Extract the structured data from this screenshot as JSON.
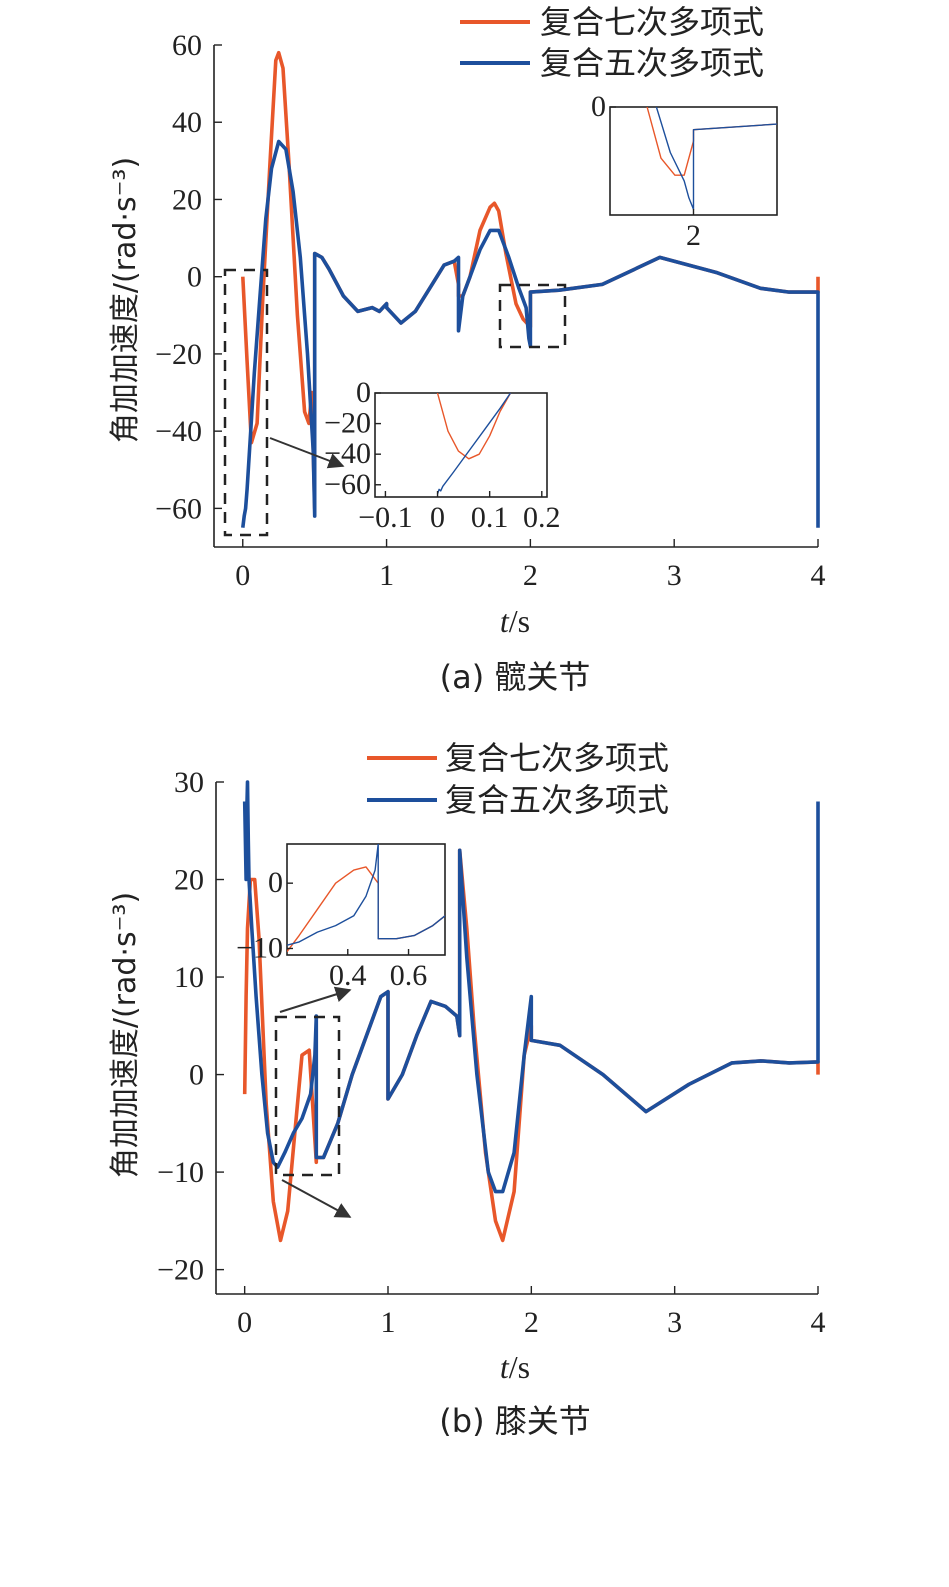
{
  "colors": {
    "seventh": "#e8572a",
    "fifth": "#1d4f9c",
    "axis": "#222222"
  },
  "legend": {
    "seventh": "复合七次多项式",
    "fifth": "复合五次多项式"
  },
  "chart_data": [
    {
      "id": "hip",
      "type": "line",
      "caption": "(a) 髋关节",
      "xlabel_italic": "t",
      "xlabel_unit": "/s",
      "ylabel": "角加加速度/(rad·s⁻³)",
      "xlim": [
        -0.2,
        4
      ],
      "ylim": [
        -70,
        60
      ],
      "xticks": [
        0,
        1,
        2,
        3,
        4
      ],
      "yticks": [
        60,
        40,
        20,
        0,
        -20,
        -40,
        -60
      ],
      "xtick_labels": [
        "0",
        "1",
        "2",
        "3",
        "4"
      ],
      "ytick_labels": [
        "60",
        "40",
        "20",
        "0",
        "−20",
        "−40",
        "−60"
      ],
      "series": [
        {
          "key": "seventh",
          "x": [
            0,
            0.03,
            0.06,
            0.1,
            0.14,
            0.19,
            0.23,
            0.25,
            0.28,
            0.32,
            0.38,
            0.43,
            0.46,
            0.48,
            0.5,
            0.5,
            0.55,
            0.6,
            0.7,
            0.8,
            0.9,
            0.95,
            1.0,
            1.0,
            1.05,
            1.1,
            1.2,
            1.3,
            1.4,
            1.47,
            1.5,
            1.5,
            1.53,
            1.58,
            1.65,
            1.72,
            1.75,
            1.78,
            1.83,
            1.9,
            1.95,
            2.0,
            2.0,
            2.2,
            2.5,
            2.9,
            3.3,
            3.6,
            3.8,
            4.0,
            4.0
          ],
          "y": [
            0,
            -22,
            -43,
            -38,
            -5,
            30,
            56,
            58,
            54,
            30,
            -10,
            -35,
            -38,
            -30,
            -60,
            6,
            5,
            2,
            -5,
            -9,
            -8,
            -9,
            -7,
            -8,
            -10,
            -12,
            -9,
            -3,
            3,
            4,
            -2,
            -5,
            -5,
            0,
            12,
            18,
            19,
            17,
            6,
            -7,
            -11,
            -13,
            -4,
            -3.5,
            -2,
            5,
            1,
            -3,
            -4,
            -4,
            0
          ],
          "name": "复合七次多项式"
        },
        {
          "key": "fifth",
          "x": [
            0,
            0.01,
            0.02,
            0.03,
            0.05,
            0.08,
            0.12,
            0.16,
            0.2,
            0.25,
            0.3,
            0.35,
            0.4,
            0.45,
            0.49,
            0.5,
            0.5,
            0.55,
            0.6,
            0.7,
            0.8,
            0.9,
            0.95,
            1.0,
            1.0,
            1.05,
            1.1,
            1.2,
            1.3,
            1.4,
            1.47,
            1.5,
            1.5,
            1.53,
            1.58,
            1.65,
            1.72,
            1.78,
            1.85,
            1.92,
            1.97,
            1.99,
            2.0,
            2.0,
            2.2,
            2.5,
            2.9,
            3.3,
            3.6,
            3.8,
            4.0,
            4.0
          ],
          "y": [
            -65,
            -62,
            -60,
            -55,
            -43,
            -25,
            -5,
            15,
            28,
            35,
            33,
            22,
            5,
            -20,
            -45,
            -62,
            6,
            5,
            2,
            -5,
            -9,
            -8,
            -9,
            -7,
            -8,
            -10,
            -12,
            -9,
            -3,
            3,
            4,
            5,
            -14,
            -5,
            0,
            7,
            12,
            12,
            5,
            -3,
            -8,
            -16,
            -18,
            -4,
            -3.5,
            -2,
            5,
            1,
            -3,
            -4,
            -4,
            -65
          ],
          "name": "复合五次多项式"
        }
      ],
      "insets": [
        {
          "id": "hip-inset-right",
          "xlim": [
            1.82,
            2.18
          ],
          "ylim": [
            -19,
            0
          ],
          "xticks": [
            2
          ],
          "yticks": [
            0
          ],
          "xtick_labels": [
            "2"
          ],
          "ytick_labels": [
            "0"
          ],
          "series": [
            {
              "key": "seventh",
              "x": [
                1.9,
                1.93,
                1.96,
                1.98,
                2.0,
                2.0,
                2.18
              ],
              "y": [
                0,
                -9,
                -12,
                -12,
                -6,
                -4,
                -3
              ]
            },
            {
              "key": "fifth",
              "x": [
                1.92,
                1.95,
                1.98,
                1.99,
                2.0,
                2.0,
                2.18
              ],
              "y": [
                0,
                -8,
                -13,
                -16,
                -18,
                -4,
                -3
              ]
            }
          ]
        },
        {
          "id": "hip-inset-left",
          "xlim": [
            -0.12,
            0.21
          ],
          "ylim": [
            -68,
            0
          ],
          "xticks": [
            -0.1,
            0,
            0.1,
            0.2
          ],
          "yticks": [
            0,
            -20,
            -40,
            -60
          ],
          "xtick_labels": [
            "−0.1",
            "0",
            "0.1",
            "0.2"
          ],
          "ytick_labels": [
            "0",
            "−20",
            "−40",
            "−60"
          ],
          "series": [
            {
              "key": "seventh",
              "x": [
                0,
                0.02,
                0.04,
                0.06,
                0.08,
                0.1,
                0.12,
                0.14
              ],
              "y": [
                0,
                -25,
                -38,
                -43,
                -40,
                -28,
                -12,
                0
              ]
            },
            {
              "key": "fifth",
              "x": [
                0,
                0.003,
                0.006,
                0.01,
                0.03,
                0.06,
                0.09,
                0.12,
                0.14
              ],
              "y": [
                -66,
                -63,
                -64,
                -61,
                -52,
                -38,
                -24,
                -10,
                0
              ]
            }
          ]
        }
      ]
    },
    {
      "id": "knee",
      "type": "line",
      "caption": "(b) 膝关节",
      "xlabel_italic": "t",
      "xlabel_unit": "/s",
      "ylabel": "角加加速度/(rad·s⁻³)",
      "xlim": [
        -0.2,
        4
      ],
      "ylim": [
        -22.5,
        30
      ],
      "xticks": [
        0,
        1,
        2,
        3,
        4
      ],
      "yticks": [
        30,
        20,
        10,
        0,
        -10,
        -20
      ],
      "xtick_labels": [
        "0",
        "1",
        "2",
        "3",
        "4"
      ],
      "ytick_labels": [
        "30",
        "20",
        "10",
        "0",
        "−10",
        "−20"
      ],
      "series": [
        {
          "key": "seventh",
          "x": [
            0,
            0.01,
            0.02,
            0.04,
            0.07,
            0.1,
            0.15,
            0.2,
            0.25,
            0.3,
            0.35,
            0.4,
            0.45,
            0.5,
            0.5,
            0.55,
            0.65,
            0.75,
            0.85,
            0.95,
            1.0,
            1.0,
            1.1,
            1.2,
            1.3,
            1.4,
            1.48,
            1.5,
            1.5,
            1.55,
            1.6,
            1.68,
            1.75,
            1.8,
            1.88,
            1.95,
            2.0,
            2.0,
            2.2,
            2.5,
            2.8,
            3.1,
            3.4,
            3.6,
            3.8,
            4.0,
            4.0
          ],
          "y": [
            -2,
            8,
            15,
            20,
            20,
            14,
            -3,
            -13,
            -17,
            -14,
            -6,
            2,
            2.5,
            -9,
            -8.5,
            -8.5,
            -5,
            0,
            4,
            8,
            8.5,
            -2.5,
            0,
            4,
            7.5,
            7,
            6,
            4,
            23,
            15,
            5,
            -8,
            -15,
            -17,
            -12,
            2,
            5,
            3.5,
            3,
            0,
            -3.8,
            -1,
            1.2,
            1.4,
            1.2,
            1.3,
            0
          ],
          "name": "复合七次多项式"
        },
        {
          "key": "fifth",
          "x": [
            0,
            0.01,
            0.015,
            0.02,
            0.025,
            0.03,
            0.05,
            0.08,
            0.12,
            0.16,
            0.2,
            0.23,
            0.28,
            0.34,
            0.4,
            0.46,
            0.49,
            0.5,
            0.5,
            0.55,
            0.65,
            0.75,
            0.85,
            0.95,
            1.0,
            1.0,
            1.1,
            1.2,
            1.3,
            1.4,
            1.48,
            1.5,
            1.5,
            1.55,
            1.62,
            1.7,
            1.75,
            1.8,
            1.88,
            1.95,
            2.0,
            2.0,
            2.2,
            2.5,
            2.8,
            3.1,
            3.4,
            3.6,
            3.8,
            4.0,
            4.0
          ],
          "y": [
            28,
            20,
            27,
            30,
            24,
            20,
            15,
            8,
            0,
            -6,
            -9,
            -9.5,
            -8,
            -6,
            -4.5,
            -2,
            2,
            6,
            -8.5,
            -8.5,
            -5,
            0,
            4,
            8,
            8.5,
            -2.5,
            0,
            4,
            7.5,
            7,
            6,
            4,
            23,
            12,
            0,
            -10,
            -12,
            -12,
            -8,
            2,
            8,
            3.5,
            3,
            0,
            -3.8,
            -1,
            1.2,
            1.4,
            1.2,
            1.3,
            28
          ],
          "name": "复合五次多项式"
        }
      ],
      "insets": [
        {
          "id": "knee-inset",
          "xlim": [
            0.2,
            0.72
          ],
          "ylim": [
            -11,
            6
          ],
          "xticks": [
            0.4,
            0.6
          ],
          "yticks": [
            0,
            -10
          ],
          "xtick_labels": [
            "0.4",
            "0.6"
          ],
          "ytick_labels": [
            "0",
            "−10"
          ],
          "series": [
            {
              "key": "seventh",
              "x": [
                0.2,
                0.24,
                0.3,
                0.36,
                0.42,
                0.46,
                0.5,
                0.5,
                0.56,
                0.62,
                0.68,
                0.72
              ],
              "y": [
                -10.5,
                -8,
                -4,
                0,
                2,
                2.5,
                0,
                -8.5,
                -8.5,
                -8,
                -6.5,
                -5
              ]
            },
            {
              "key": "fifth",
              "x": [
                0.2,
                0.24,
                0.3,
                0.36,
                0.42,
                0.46,
                0.49,
                0.5,
                0.5,
                0.56,
                0.62,
                0.68,
                0.72
              ],
              "y": [
                -9.5,
                -9,
                -7.5,
                -6.5,
                -5,
                -2,
                2,
                6,
                -8.5,
                -8.5,
                -8,
                -6.5,
                -5
              ]
            }
          ]
        }
      ]
    }
  ]
}
